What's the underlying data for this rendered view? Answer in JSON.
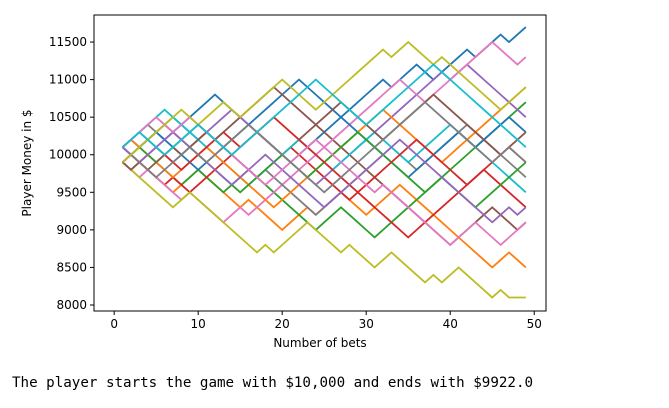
{
  "chart_data": {
    "type": "line",
    "title": "",
    "xlabel": "Number of bets",
    "ylabel": "Player Money in $",
    "xlim": [
      -2.4,
      51.4
    ],
    "ylim": [
      7920,
      11860
    ],
    "xticks": [
      0,
      10,
      20,
      30,
      40,
      50
    ],
    "yticks": [
      8000,
      8500,
      9000,
      9500,
      10000,
      10500,
      11000,
      11500
    ],
    "grid": false,
    "start_value": 10000,
    "step": 100,
    "series": [
      {
        "color": "#1f77b4",
        "values": [
          10100,
          10200,
          10100,
          10200,
          10300,
          10200,
          10300,
          10400,
          10500,
          10600,
          10700,
          10800,
          10700,
          10600,
          10500,
          10400,
          10300,
          10200,
          10100,
          10000,
          9900,
          10000,
          10100,
          10200,
          10300,
          10400,
          10500,
          10600,
          10700,
          10800,
          10900,
          11000,
          10900,
          11000,
          11100,
          11200,
          11100,
          11000,
          11100,
          11200,
          11300,
          11400,
          11300,
          11400,
          11500,
          11600,
          11500,
          11600,
          11700
        ]
      },
      {
        "color": "#ff7f0e",
        "values": [
          9900,
          10000,
          9900,
          9800,
          9700,
          9600,
          9500,
          9600,
          9700,
          9800,
          9700,
          9600,
          9500,
          9400,
          9300,
          9400,
          9300,
          9200,
          9100,
          9000,
          9100,
          9200,
          9300,
          9200,
          9300,
          9400,
          9500,
          9400,
          9300,
          9200,
          9300,
          9400,
          9500,
          9600,
          9500,
          9400,
          9300,
          9200,
          9100,
          9000,
          8900,
          8800,
          8700,
          8600,
          8500,
          8600,
          8700,
          8600,
          8500
        ]
      },
      {
        "color": "#2ca02c",
        "values": [
          9900,
          9800,
          9900,
          10000,
          9900,
          9800,
          9700,
          9600,
          9700,
          9800,
          9700,
          9600,
          9500,
          9600,
          9700,
          9800,
          9700,
          9600,
          9500,
          9400,
          9300,
          9200,
          9100,
          9000,
          9100,
          9200,
          9300,
          9200,
          9100,
          9000,
          8900,
          9000,
          9100,
          9200,
          9300,
          9400,
          9500,
          9600,
          9700,
          9800,
          9900,
          10000,
          10100,
          10200,
          10300,
          10400,
          10500,
          10600,
          10700
        ]
      },
      {
        "color": "#d62728",
        "values": [
          10100,
          10000,
          9900,
          9800,
          9700,
          9600,
          9700,
          9600,
          9500,
          9600,
          9700,
          9800,
          9900,
          10000,
          10100,
          10200,
          10300,
          10200,
          10100,
          10000,
          10100,
          10000,
          9900,
          9800,
          9700,
          9600,
          9500,
          9400,
          9500,
          9400,
          9300,
          9200,
          9100,
          9000,
          8900,
          9000,
          9100,
          9200,
          9300,
          9400,
          9500,
          9600,
          9700,
          9800,
          9700,
          9600,
          9500,
          9400,
          9300
        ]
      },
      {
        "color": "#9467bd",
        "values": [
          10100,
          10200,
          10300,
          10200,
          10100,
          10000,
          9900,
          10000,
          10100,
          10200,
          10300,
          10400,
          10500,
          10600,
          10500,
          10400,
          10300,
          10200,
          10100,
          10000,
          9900,
          9800,
          9700,
          9600,
          9700,
          9800,
          9900,
          10000,
          10100,
          10200,
          10300,
          10400,
          10500,
          10600,
          10700,
          10800,
          10900,
          11000,
          11100,
          11000,
          11100,
          11200,
          11100,
          11000,
          10900,
          10800,
          10700,
          10600,
          10500
        ]
      },
      {
        "color": "#8c564b",
        "values": [
          10100,
          10000,
          10100,
          10200,
          10300,
          10400,
          10300,
          10200,
          10300,
          10400,
          10300,
          10200,
          10100,
          10000,
          9900,
          9800,
          9700,
          9800,
          9900,
          10000,
          10100,
          10200,
          10300,
          10400,
          10300,
          10200,
          10100,
          10000,
          9900,
          9800,
          9700,
          9600,
          9500,
          9400,
          9300,
          9200,
          9100,
          9000,
          8900,
          8800,
          8900,
          9000,
          9100,
          9200,
          9300,
          9200,
          9100,
          9000,
          9100
        ]
      },
      {
        "color": "#e377c2",
        "values": [
          9900,
          9800,
          9700,
          9800,
          9700,
          9600,
          9500,
          9400,
          9500,
          9400,
          9300,
          9200,
          9100,
          9200,
          9300,
          9200,
          9300,
          9400,
          9500,
          9600,
          9700,
          9800,
          9900,
          10000,
          10100,
          10200,
          10300,
          10400,
          10500,
          10600,
          10700,
          10800,
          10900,
          11000,
          10900,
          10800,
          10700,
          10800,
          10900,
          11000,
          11100,
          11200,
          11300,
          11400,
          11500,
          11400,
          11300,
          11200,
          11300
        ]
      },
      {
        "color": "#7f7f7f",
        "values": [
          10100,
          10200,
          10300,
          10400,
          10300,
          10400,
          10500,
          10400,
          10300,
          10200,
          10300,
          10200,
          10100,
          10000,
          9900,
          9800,
          9700,
          9800,
          9700,
          9600,
          9500,
          9400,
          9300,
          9200,
          9300,
          9400,
          9500,
          9600,
          9700,
          9800,
          9900,
          10000,
          10100,
          10000,
          9900,
          9800,
          9900,
          10000,
          10100,
          10200,
          10300,
          10400,
          10300,
          10200,
          10100,
          10000,
          9900,
          9800,
          9700
        ]
      },
      {
        "color": "#bcbd22",
        "values": [
          9900,
          9800,
          9700,
          9600,
          9500,
          9400,
          9300,
          9400,
          9500,
          9400,
          9300,
          9200,
          9100,
          9000,
          8900,
          8800,
          8700,
          8800,
          8700,
          8800,
          8900,
          9000,
          9100,
          9000,
          8900,
          8800,
          8700,
          8800,
          8700,
          8600,
          8500,
          8600,
          8700,
          8600,
          8500,
          8400,
          8300,
          8400,
          8300,
          8400,
          8500,
          8400,
          8300,
          8200,
          8100,
          8200,
          8100,
          8100,
          8100
        ]
      },
      {
        "color": "#17becf",
        "values": [
          10100,
          10200,
          10300,
          10400,
          10500,
          10600,
          10500,
          10400,
          10300,
          10200,
          10100,
          10000,
          9900,
          9800,
          9700,
          9600,
          9700,
          9800,
          9900,
          10000,
          10100,
          10200,
          10100,
          10000,
          9900,
          9800,
          9900,
          10000,
          10100,
          10200,
          10300,
          10200,
          10100,
          10000,
          9900,
          10000,
          10100,
          10200,
          10300,
          10400,
          10300,
          10200,
          10100,
          10000,
          9900,
          9800,
          9700,
          9600,
          9500
        ]
      },
      {
        "color": "#1f77b4",
        "values": [
          10100,
          10000,
          10100,
          10200,
          10300,
          10200,
          10100,
          10000,
          9900,
          9800,
          9900,
          10000,
          10100,
          10200,
          10300,
          10400,
          10500,
          10600,
          10700,
          10800,
          10900,
          11000,
          10900,
          10800,
          10700,
          10600,
          10500,
          10400,
          10300,
          10200,
          10100,
          10000,
          9900,
          9800,
          9700,
          9800,
          9900,
          10000,
          10100,
          10200,
          10300,
          10200,
          10100,
          10200,
          10300,
          10400,
          10500,
          10400,
          10300
        ]
      },
      {
        "color": "#ff7f0e",
        "values": [
          10100,
          10200,
          10100,
          10000,
          9900,
          9800,
          9700,
          9800,
          9900,
          10000,
          10100,
          10000,
          9900,
          9800,
          9700,
          9600,
          9500,
          9400,
          9300,
          9400,
          9500,
          9600,
          9700,
          9800,
          9900,
          10000,
          10100,
          10200,
          10300,
          10400,
          10500,
          10600,
          10500,
          10400,
          10300,
          10200,
          10100,
          10000,
          9900,
          10000,
          10100,
          10200,
          10300,
          10400,
          10500,
          10600,
          10700,
          10800,
          10900
        ]
      },
      {
        "color": "#2ca02c",
        "values": [
          9900,
          10000,
          10100,
          10000,
          9900,
          10000,
          10100,
          10200,
          10100,
          10000,
          9900,
          9800,
          9700,
          9600,
          9500,
          9600,
          9700,
          9800,
          9900,
          10000,
          9900,
          9800,
          9700,
          9800,
          9900,
          10000,
          10100,
          10200,
          10300,
          10200,
          10100,
          10000,
          9900,
          9800,
          9700,
          9600,
          9500,
          9600,
          9700,
          9600,
          9500,
          9400,
          9300,
          9400,
          9500,
          9600,
          9700,
          9800,
          9900
        ]
      },
      {
        "color": "#d62728",
        "values": [
          9900,
          10000,
          9900,
          10000,
          10100,
          10000,
          9900,
          9800,
          9900,
          10000,
          10100,
          10200,
          10300,
          10200,
          10100,
          10200,
          10300,
          10400,
          10500,
          10400,
          10300,
          10200,
          10100,
          10000,
          9900,
          9800,
          9700,
          9600,
          9500,
          9600,
          9700,
          9800,
          9900,
          10000,
          10100,
          10200,
          10100,
          10000,
          9900,
          9800,
          9700,
          9600,
          9700,
          9800,
          9900,
          10000,
          10100,
          10000,
          9900
        ]
      },
      {
        "color": "#9467bd",
        "values": [
          10100,
          10000,
          9900,
          10000,
          10100,
          10200,
          10300,
          10200,
          10100,
          10000,
          9900,
          9800,
          9700,
          9600,
          9700,
          9800,
          9900,
          10000,
          9900,
          9800,
          9700,
          9600,
          9500,
          9400,
          9300,
          9400,
          9500,
          9600,
          9700,
          9800,
          9900,
          10000,
          10100,
          10200,
          10100,
          10000,
          9900,
          9800,
          9700,
          9600,
          9500,
          9400,
          9300,
          9200,
          9100,
          9200,
          9300,
          9200,
          9300
        ]
      },
      {
        "color": "#8c564b",
        "values": [
          9900,
          9800,
          9900,
          9800,
          9900,
          10000,
          10100,
          10000,
          10100,
          10200,
          10300,
          10200,
          10300,
          10400,
          10500,
          10600,
          10700,
          10800,
          10900,
          10800,
          10700,
          10600,
          10500,
          10400,
          10500,
          10600,
          10700,
          10600,
          10500,
          10400,
          10300,
          10200,
          10300,
          10400,
          10500,
          10600,
          10700,
          10800,
          10700,
          10600,
          10500,
          10400,
          10300,
          10200,
          10100,
          10000,
          10100,
          10200,
          10300
        ]
      },
      {
        "color": "#e377c2",
        "values": [
          10100,
          10200,
          10300,
          10400,
          10500,
          10400,
          10300,
          10400,
          10500,
          10400,
          10300,
          10200,
          10100,
          10000,
          9900,
          9800,
          9700,
          9600,
          9700,
          9800,
          9900,
          10000,
          10100,
          10200,
          10100,
          10000,
          9900,
          9800,
          9700,
          9600,
          9500,
          9600,
          9500,
          9400,
          9300,
          9200,
          9100,
          9000,
          8900,
          8800,
          8900,
          9000,
          9100,
          9000,
          8900,
          8800,
          8900,
          9000,
          9100
        ]
      },
      {
        "color": "#7f7f7f",
        "values": [
          9900,
          10000,
          9900,
          9800,
          9700,
          9800,
          9900,
          10000,
          10100,
          10000,
          9900,
          10000,
          10100,
          10200,
          10300,
          10400,
          10300,
          10200,
          10100,
          10000,
          9900,
          9800,
          9700,
          9600,
          9500,
          9600,
          9700,
          9800,
          9900,
          10000,
          10100,
          10200,
          10300,
          10400,
          10500,
          10600,
          10700,
          10600,
          10500,
          10400,
          10300,
          10200,
          10100,
          10000,
          9900,
          10000,
          10100,
          10000,
          9900
        ]
      },
      {
        "color": "#bcbd22",
        "values": [
          9900,
          10000,
          10100,
          10200,
          10300,
          10400,
          10500,
          10600,
          10500,
          10400,
          10500,
          10600,
          10700,
          10600,
          10500,
          10600,
          10700,
          10800,
          10900,
          11000,
          10900,
          10800,
          10700,
          10600,
          10700,
          10800,
          10900,
          11000,
          11100,
          11200,
          11300,
          11400,
          11300,
          11400,
          11500,
          11400,
          11300,
          11200,
          11300,
          11200,
          11100,
          11000,
          10900,
          10800,
          10700,
          10600,
          10700,
          10800,
          10900
        ]
      },
      {
        "color": "#17becf",
        "values": [
          10100,
          10200,
          10300,
          10200,
          10100,
          10000,
          10100,
          10200,
          10300,
          10400,
          10300,
          10200,
          10100,
          10000,
          10100,
          10200,
          10300,
          10400,
          10500,
          10600,
          10700,
          10800,
          10900,
          11000,
          10900,
          10800,
          10700,
          10600,
          10500,
          10400,
          10500,
          10600,
          10700,
          10800,
          10900,
          11000,
          11100,
          11200,
          11100,
          11000,
          10900,
          10800,
          10700,
          10600,
          10500,
          10400,
          10300,
          10200,
          10100
        ]
      }
    ]
  },
  "caption": "The player starts the game with $10,000 and ends with $9922.0"
}
